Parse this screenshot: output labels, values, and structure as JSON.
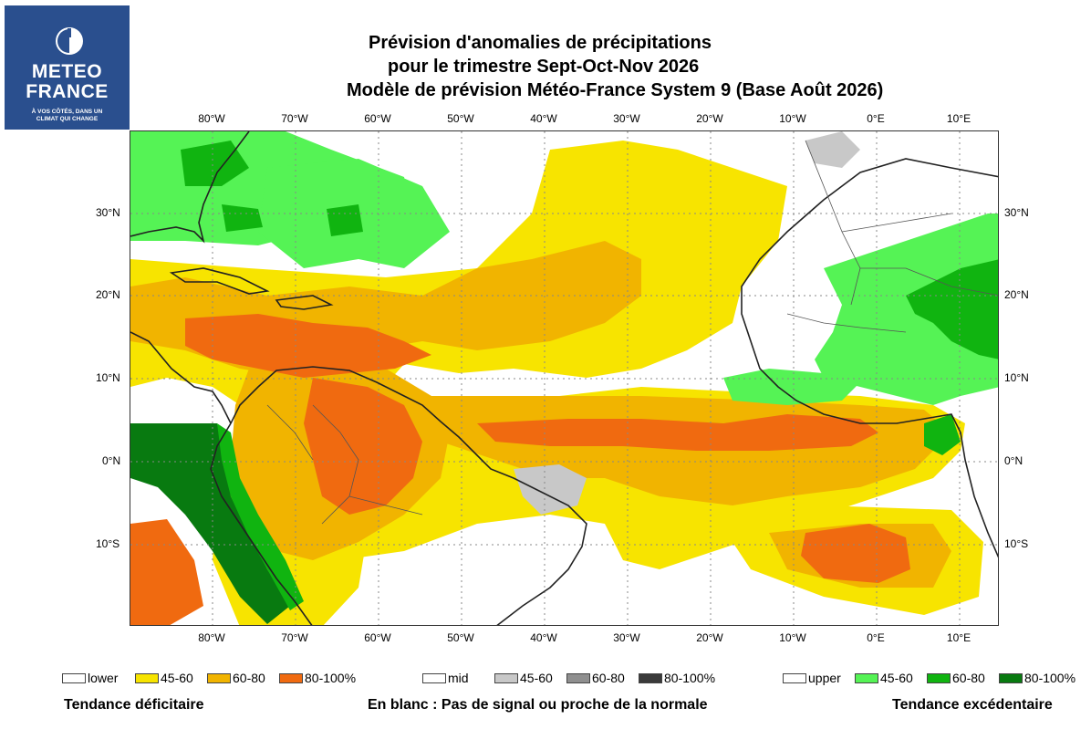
{
  "logo": {
    "line1": "METEO",
    "line2": "FRANCE",
    "tagline1": "À VOS CÔTÉS, DANS UN",
    "tagline2": "CLIMAT QUI CHANGE"
  },
  "title": {
    "line1": "Prévision d'anomalies de précipitations",
    "line2": "pour le trimestre Sept-Oct-Nov 2026",
    "line3": "Modèle de prévision Météo-France System 9 (Base Août 2026)"
  },
  "axes": {
    "longitude_labels": [
      "80°W",
      "70°W",
      "60°W",
      "50°W",
      "40°W",
      "30°W",
      "20°W",
      "10°W",
      "0°E",
      "10°E"
    ],
    "latitude_labels": [
      "30°N",
      "20°N",
      "10°N",
      "0°N",
      "10°S"
    ]
  },
  "colors": {
    "lower": "#ffffff",
    "lower_45_60": "#f7e400",
    "lower_60_80": "#f1b400",
    "lower_80_100": "#f06a10",
    "mid": "#ffffff",
    "mid_45_60": "#c8c8c8",
    "mid_60_80": "#8f8f8f",
    "mid_80_100": "#3a3a3a",
    "upper": "#ffffff",
    "upper_45_60": "#55f355",
    "upper_60_80": "#10b410",
    "upper_80_100": "#087a10",
    "land_border": "#222222",
    "country_border": "#555555",
    "logo_bg": "#2a4f8e"
  },
  "legend": {
    "lower": [
      "lower",
      "45-60",
      "60-80",
      "80-100%"
    ],
    "mid": [
      "mid",
      "45-60",
      "60-80",
      "80-100%"
    ],
    "upper": [
      "upper",
      "45-60",
      "60-80",
      "80-100%"
    ]
  },
  "footer": {
    "left": "Tendance déficitaire",
    "center": "En blanc : Pas de signal ou proche de la normale",
    "right": "Tendance excédentaire"
  }
}
